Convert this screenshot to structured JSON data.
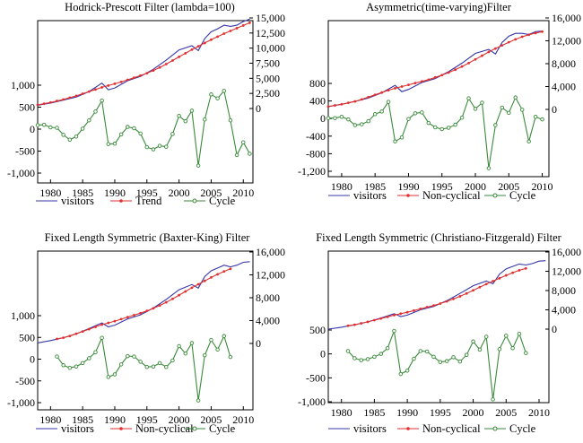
{
  "chart_data": [
    {
      "type": "line",
      "title": "Hodrick-Prescott Filter (lambda=100)",
      "x_ticks": [
        "1980",
        "1985",
        "1990",
        "1995",
        "2000",
        "2005",
        "2010"
      ],
      "xlim": [
        1978,
        2011.5
      ],
      "left_axis": {
        "ticks": [
          "1,000",
          "500",
          "0",
          "-500",
          "-1,000"
        ],
        "tick_values": [
          1000,
          500,
          0,
          -500,
          -1000
        ]
      },
      "right_axis": {
        "ticks": [
          "15,000",
          "12,500",
          "10,000",
          "7,500",
          "5,000",
          "2,500",
          "0"
        ],
        "tick_values": [
          15000,
          12500,
          10000,
          7500,
          5000,
          2500,
          0
        ]
      },
      "legend": [
        "visitors",
        "Trend",
        "Cycle"
      ],
      "series": [
        {
          "name": "visitors",
          "axis": "right",
          "color": "#3535a8",
          "marker": "none",
          "x": [
            1978,
            1980,
            1982,
            1984,
            1986,
            1988,
            1989,
            1990,
            1992,
            1994,
            1996,
            1998,
            2000,
            2002,
            2003,
            2004,
            2005,
            2006,
            2007,
            2008,
            2009,
            2010,
            2011
          ],
          "y": [
            550,
            900,
            1400,
            1900,
            2800,
            4200,
            3100,
            3400,
            4600,
            5300,
            6500,
            8000,
            9700,
            10400,
            9600,
            11600,
            12700,
            13200,
            13800,
            13600,
            13800,
            14400,
            14800
          ]
        },
        {
          "name": "Trend",
          "axis": "right",
          "color": "#e03030",
          "marker": "dot",
          "x": [
            1978,
            1979,
            1980,
            1981,
            1982,
            1983,
            1984,
            1985,
            1986,
            1987,
            1988,
            1989,
            1990,
            1991,
            1992,
            1993,
            1994,
            1995,
            1996,
            1997,
            1998,
            1999,
            2000,
            2001,
            2002,
            2003,
            2004,
            2005,
            2006,
            2007,
            2008,
            2009,
            2010,
            2011
          ],
          "y": [
            600,
            800,
            1000,
            1250,
            1500,
            1800,
            2100,
            2450,
            2800,
            3150,
            3500,
            3800,
            4100,
            4400,
            4750,
            5100,
            5450,
            5850,
            6300,
            6800,
            7350,
            7950,
            8550,
            9150,
            9750,
            10300,
            10850,
            11400,
            11900,
            12400,
            12850,
            13300,
            13750,
            14200
          ]
        },
        {
          "name": "Cycle",
          "axis": "left",
          "color": "#3a8a3a",
          "marker": "circle",
          "x": [
            1978,
            1979,
            1980,
            1981,
            1982,
            1983,
            1984,
            1985,
            1986,
            1987,
            1988,
            1989,
            1990,
            1991,
            1992,
            1993,
            1994,
            1995,
            1996,
            1997,
            1998,
            1999,
            2000,
            2001,
            2002,
            2003,
            2004,
            2005,
            2006,
            2007,
            2008,
            2009,
            2010,
            2011
          ],
          "y": [
            90,
            100,
            40,
            30,
            -130,
            -240,
            -170,
            10,
            200,
            400,
            650,
            -340,
            -330,
            -120,
            50,
            20,
            -100,
            -410,
            -460,
            -380,
            -400,
            -110,
            300,
            180,
            420,
            -830,
            220,
            790,
            700,
            870,
            200,
            -590,
            -300,
            -560
          ]
        }
      ]
    },
    {
      "type": "line",
      "title": "Asymmetric(time-varying)Filter",
      "x_ticks": [
        "1980",
        "1985",
        "1990",
        "1995",
        "2000",
        "2005",
        "2010"
      ],
      "xlim": [
        1978,
        2011
      ],
      "left_axis": {
        "ticks": [
          "800",
          "400",
          "0",
          "-400",
          "-800",
          "-1,200"
        ],
        "tick_values": [
          800,
          400,
          0,
          -400,
          -800,
          -1200
        ]
      },
      "right_axis": {
        "ticks": [
          "16,000",
          "12,000",
          "8,000",
          "4,000",
          "0"
        ],
        "tick_values": [
          16000,
          12000,
          8000,
          4000,
          0
        ]
      },
      "legend": [
        "visitors",
        "Non-cyclical",
        "Cycle"
      ],
      "series": [
        {
          "name": "visitors",
          "axis": "right",
          "color": "#3535a8",
          "marker": "none",
          "x": [
            1978,
            1980,
            1982,
            1984,
            1986,
            1988,
            1989,
            1990,
            1992,
            1994,
            1996,
            1998,
            2000,
            2002,
            2003,
            2004,
            2005,
            2006,
            2007,
            2008,
            2009,
            2010
          ],
          "y": [
            500,
            900,
            1400,
            2000,
            2900,
            4200,
            3100,
            3500,
            4700,
            5400,
            6600,
            8100,
            9800,
            10500,
            9700,
            11700,
            12800,
            13300,
            13300,
            13100,
            13600,
            13700
          ]
        },
        {
          "name": "Non-cyclical",
          "axis": "right",
          "color": "#e03030",
          "marker": "dot",
          "x": [
            1978,
            1979,
            1980,
            1981,
            1982,
            1983,
            1984,
            1985,
            1986,
            1987,
            1988,
            1989,
            1990,
            1991,
            1992,
            1993,
            1994,
            1995,
            1996,
            1997,
            1998,
            1999,
            2000,
            2001,
            2002,
            2003,
            2004,
            2005,
            2006,
            2007,
            2008,
            2009,
            2010
          ],
          "y": [
            500,
            700,
            900,
            1150,
            1400,
            1750,
            2150,
            2550,
            2950,
            3350,
            3700,
            4000,
            4300,
            4600,
            4900,
            5200,
            5600,
            6000,
            6450,
            6950,
            7500,
            8100,
            8750,
            9400,
            10050,
            10650,
            11200,
            11750,
            12250,
            12700,
            13050,
            13350,
            13600
          ]
        },
        {
          "name": "Cycle",
          "axis": "left",
          "color": "#3a8a3a",
          "marker": "circle",
          "x": [
            1978,
            1979,
            1980,
            1981,
            1982,
            1983,
            1984,
            1985,
            1986,
            1987,
            1988,
            1989,
            1990,
            1991,
            1992,
            1993,
            1994,
            1995,
            1996,
            1997,
            1998,
            1999,
            2000,
            2001,
            2002,
            2003,
            2004,
            2005,
            2006,
            2007,
            2008,
            2009,
            2010
          ],
          "y": [
            10,
            10,
            40,
            -20,
            -150,
            -130,
            -60,
            100,
            160,
            380,
            -520,
            -430,
            -10,
            120,
            140,
            -100,
            -200,
            -240,
            -210,
            -140,
            20,
            460,
            220,
            360,
            -1130,
            -150,
            250,
            130,
            480,
            200,
            -520,
            40,
            -20
          ]
        }
      ]
    },
    {
      "type": "line",
      "title": "Fixed Length Symmetric (Baxter-King) Filter",
      "x_ticks": [
        "1980",
        "1985",
        "1990",
        "1995",
        "2000",
        "2005",
        "2010"
      ],
      "xlim": [
        1978,
        2011.5
      ],
      "left_axis": {
        "ticks": [
          "1,000",
          "500",
          "0",
          "-500",
          "-1,000"
        ],
        "tick_values": [
          1000,
          500,
          0,
          -500,
          -1000
        ]
      },
      "right_axis": {
        "ticks": [
          "16,000",
          "12,000",
          "8,000",
          "4,000",
          "0"
        ],
        "tick_values": [
          16000,
          12000,
          8000,
          4000,
          0
        ]
      },
      "legend": [
        "visitors",
        "Non-cyclical",
        "Cycle"
      ],
      "series": [
        {
          "name": "visitors",
          "axis": "right",
          "color": "#3535a8",
          "marker": "none",
          "x": [
            1978,
            1980,
            1982,
            1984,
            1986,
            1988,
            1989,
            1990,
            1992,
            1994,
            1996,
            1998,
            2000,
            2002,
            2003,
            2004,
            2005,
            2006,
            2007,
            2008,
            2009,
            2010,
            2011
          ],
          "y": [
            100,
            500,
            1000,
            1700,
            2600,
            3600,
            2900,
            3200,
            4300,
            5000,
            6200,
            7700,
            9400,
            10300,
            9700,
            11700,
            12700,
            13200,
            13700,
            13400,
            13700,
            14200,
            14300
          ]
        },
        {
          "name": "Non-cyclical",
          "axis": "right",
          "color": "#e03030",
          "marker": "dot",
          "x": [
            1981,
            1982,
            1983,
            1984,
            1985,
            1986,
            1987,
            1988,
            1989,
            1990,
            1991,
            1992,
            1993,
            1994,
            1995,
            1996,
            1997,
            1998,
            1999,
            2000,
            2001,
            2002,
            2003,
            2004,
            2005,
            2006,
            2007,
            2008
          ],
          "y": [
            800,
            1000,
            1300,
            1700,
            2100,
            2500,
            2900,
            3300,
            3600,
            3900,
            4250,
            4600,
            4950,
            5300,
            5700,
            6150,
            6650,
            7200,
            7800,
            8450,
            9100,
            9750,
            10350,
            10950,
            11550,
            12100,
            12600,
            13050
          ]
        },
        {
          "name": "Cycle",
          "axis": "left",
          "color": "#3a8a3a",
          "marker": "circle",
          "x": [
            1981,
            1982,
            1983,
            1984,
            1985,
            1986,
            1987,
            1988,
            1989,
            1990,
            1991,
            1992,
            1993,
            1994,
            1995,
            1996,
            1997,
            1998,
            1999,
            2000,
            2001,
            2002,
            2003,
            2004,
            2005,
            2006,
            2007,
            2008
          ],
          "y": [
            60,
            -140,
            -200,
            -170,
            -90,
            20,
            160,
            490,
            -410,
            -350,
            -120,
            70,
            60,
            -60,
            -180,
            -170,
            -90,
            -180,
            -30,
            300,
            130,
            370,
            -950,
            90,
            440,
            220,
            530,
            50
          ]
        }
      ]
    },
    {
      "type": "line",
      "title": "Fixed Length Symmetric (Christiano-Fitzgerald) Filter",
      "x_ticks": [
        "1980",
        "1985",
        "1990",
        "1995",
        "2000",
        "2005",
        "2010"
      ],
      "xlim": [
        1978,
        2011.5
      ],
      "left_axis": {
        "ticks": [
          "500",
          "0",
          "-500",
          "-1,000"
        ],
        "tick_values": [
          500,
          0,
          -500,
          -1000
        ]
      },
      "right_axis": {
        "ticks": [
          "16,000",
          "12,000",
          "8,000",
          "4,000",
          "0"
        ],
        "tick_values": [
          16000,
          12000,
          8000,
          4000,
          0
        ]
      },
      "legend": [
        "visitors",
        "Non-cyclical",
        "Cycle"
      ],
      "series": [
        {
          "name": "visitors",
          "axis": "right",
          "color": "#3535a8",
          "marker": "none",
          "x": [
            1978,
            1980,
            1982,
            1984,
            1986,
            1988,
            1989,
            1990,
            1992,
            1994,
            1996,
            1998,
            2000,
            2002,
            2003,
            2004,
            2005,
            2006,
            2007,
            2008,
            2009,
            2010,
            2011
          ],
          "y": [
            0,
            400,
            900,
            1500,
            2300,
            3200,
            2600,
            2900,
            4000,
            4700,
            5900,
            7400,
            9000,
            10000,
            9400,
            11400,
            12500,
            13000,
            13500,
            13300,
            13600,
            14100,
            14200
          ]
        },
        {
          "name": "Non-cyclical",
          "axis": "right",
          "color": "#e03030",
          "marker": "dot",
          "x": [
            1981,
            1982,
            1983,
            1984,
            1985,
            1986,
            1987,
            1988,
            1989,
            1990,
            1991,
            1992,
            1993,
            1994,
            1995,
            1996,
            1997,
            1998,
            1999,
            2000,
            2001,
            2002,
            2003,
            2004,
            2005,
            2006,
            2007,
            2008
          ],
          "y": [
            700,
            900,
            1200,
            1500,
            1850,
            2200,
            2550,
            2900,
            3200,
            3500,
            3850,
            4200,
            4550,
            4900,
            5300,
            5750,
            6250,
            6800,
            7400,
            8050,
            8700,
            9350,
            9950,
            10550,
            11150,
            11700,
            12200,
            12600
          ]
        },
        {
          "name": "Cycle",
          "axis": "left",
          "color": "#3a8a3a",
          "marker": "circle",
          "x": [
            1981,
            1982,
            1983,
            1984,
            1985,
            1986,
            1987,
            1988,
            1989,
            1990,
            1991,
            1992,
            1993,
            1994,
            1995,
            1996,
            1997,
            1998,
            1999,
            2000,
            2001,
            2002,
            2003,
            2004,
            2005,
            2006,
            2007,
            2008
          ],
          "y": [
            60,
            -90,
            -130,
            -110,
            -60,
            0,
            120,
            480,
            -420,
            -350,
            -100,
            60,
            50,
            -60,
            -170,
            -150,
            -70,
            -160,
            -20,
            260,
            90,
            360,
            -950,
            100,
            380,
            120,
            420,
            20
          ]
        }
      ]
    }
  ]
}
